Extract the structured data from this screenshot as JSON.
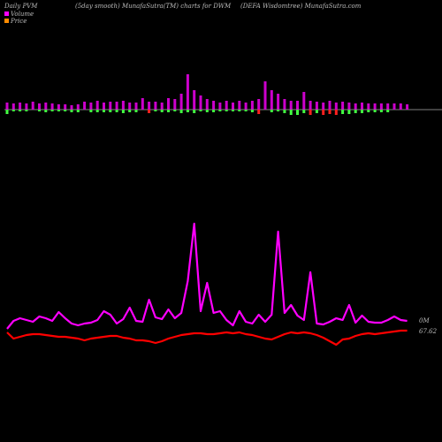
{
  "header": {
    "left": "Daily PVM",
    "mid1": "(5day smooth) MunafaSutra(TM) charts for DWM",
    "mid2": "(DEFA Wisdomtree) MunafaSutra.com"
  },
  "legend": [
    {
      "label": "Volume",
      "color": "#ff00ff"
    },
    {
      "label": "Price",
      "color": "#ff8c00"
    }
  ],
  "colors": {
    "bar_up": "#cc00cc",
    "bar_down": "#ff2020",
    "bar_down_small": "#44ff44",
    "volume_line": "#ff00ff",
    "price_line": "#ff0000",
    "baseline": "#aaaaaa"
  },
  "chart_data": {
    "type": "line",
    "ticker": "DWM",
    "value_labels": {
      "volume": "0M",
      "price": "67.62"
    },
    "bars": [
      {
        "up": 8,
        "down": 5,
        "down_color": "green"
      },
      {
        "up": 7,
        "down": 2,
        "down_color": "green"
      },
      {
        "up": 8,
        "down": 2,
        "down_color": "green"
      },
      {
        "up": 7,
        "down": 2,
        "down_color": "green"
      },
      {
        "up": 9,
        "down": 0
      },
      {
        "up": 7,
        "down": 2,
        "down_color": "green"
      },
      {
        "up": 8,
        "down": 3,
        "down_color": "green"
      },
      {
        "up": 7,
        "down": 2,
        "down_color": "green"
      },
      {
        "up": 6,
        "down": 2,
        "down_color": "green"
      },
      {
        "up": 6,
        "down": 2,
        "down_color": "green"
      },
      {
        "up": 5,
        "down": 3,
        "down_color": "green"
      },
      {
        "up": 6,
        "down": 3,
        "down_color": "green"
      },
      {
        "up": 9,
        "down": 0
      },
      {
        "up": 8,
        "down": 3,
        "down_color": "green"
      },
      {
        "up": 10,
        "down": 3,
        "down_color": "green"
      },
      {
        "up": 8,
        "down": 3,
        "down_color": "green"
      },
      {
        "up": 9,
        "down": 3,
        "down_color": "green"
      },
      {
        "up": 9,
        "down": 3,
        "down_color": "green"
      },
      {
        "up": 10,
        "down": 4,
        "down_color": "green"
      },
      {
        "up": 8,
        "down": 3,
        "down_color": "green"
      },
      {
        "up": 8,
        "down": 3,
        "down_color": "green"
      },
      {
        "up": 13,
        "down": 0
      },
      {
        "up": 9,
        "down": 4,
        "down_color": "red"
      },
      {
        "up": 9,
        "down": 2,
        "down_color": "green"
      },
      {
        "up": 8,
        "down": 3,
        "down_color": "green"
      },
      {
        "up": 13,
        "down": 3,
        "down_color": "green"
      },
      {
        "up": 12,
        "down": 2,
        "down_color": "green"
      },
      {
        "up": 18,
        "down": 4,
        "down_color": "green"
      },
      {
        "up": 40,
        "down": 3,
        "down_color": "green"
      },
      {
        "up": 22,
        "down": 4,
        "down_color": "green"
      },
      {
        "up": 16,
        "down": 2,
        "down_color": "green"
      },
      {
        "up": 12,
        "down": 3,
        "down_color": "green"
      },
      {
        "up": 10,
        "down": 3,
        "down_color": "green"
      },
      {
        "up": 8,
        "down": 2,
        "down_color": "green"
      },
      {
        "up": 10,
        "down": 2,
        "down_color": "green"
      },
      {
        "up": 8,
        "down": 2,
        "down_color": "green"
      },
      {
        "up": 10,
        "down": 2,
        "down_color": "green"
      },
      {
        "up": 8,
        "down": 2,
        "down_color": "green"
      },
      {
        "up": 10,
        "down": 3,
        "down_color": "green"
      },
      {
        "up": 12,
        "down": 5,
        "down_color": "red"
      },
      {
        "up": 32,
        "down": 0
      },
      {
        "up": 22,
        "down": 3,
        "down_color": "green"
      },
      {
        "up": 18,
        "down": 2,
        "down_color": "green"
      },
      {
        "up": 12,
        "down": 4,
        "down_color": "green"
      },
      {
        "up": 10,
        "down": 6,
        "down_color": "green"
      },
      {
        "up": 10,
        "down": 6,
        "down_color": "green"
      },
      {
        "up": 20,
        "down": 4,
        "down_color": "green"
      },
      {
        "up": 10,
        "down": 6,
        "down_color": "red"
      },
      {
        "up": 9,
        "down": 4,
        "down_color": "green"
      },
      {
        "up": 8,
        "down": 6,
        "down_color": "red"
      },
      {
        "up": 10,
        "down": 5,
        "down_color": "red"
      },
      {
        "up": 8,
        "down": 6,
        "down_color": "red"
      },
      {
        "up": 9,
        "down": 5,
        "down_color": "green"
      },
      {
        "up": 8,
        "down": 5,
        "down_color": "green"
      },
      {
        "up": 7,
        "down": 4,
        "down_color": "green"
      },
      {
        "up": 8,
        "down": 4,
        "down_color": "green"
      },
      {
        "up": 7,
        "down": 3,
        "down_color": "green"
      },
      {
        "up": 7,
        "down": 3,
        "down_color": "green"
      },
      {
        "up": 7,
        "down": 3,
        "down_color": "green"
      },
      {
        "up": 7,
        "down": 3,
        "down_color": "green"
      },
      {
        "up": 7,
        "down": 0
      },
      {
        "up": 7,
        "down": 0
      },
      {
        "up": 6,
        "down": 0
      }
    ],
    "volume_line": [
      372,
      363,
      360,
      362,
      364,
      358,
      360,
      363,
      353,
      360,
      366,
      368,
      366,
      365,
      362,
      352,
      356,
      366,
      361,
      348,
      363,
      364,
      339,
      359,
      361,
      350,
      360,
      354,
      318,
      253,
      352,
      320,
      354,
      352,
      362,
      368,
      352,
      364,
      366,
      356,
      364,
      356,
      262,
      354,
      345,
      357,
      362,
      308,
      366,
      367,
      364,
      360,
      362,
      345,
      365,
      357,
      364,
      365,
      365,
      362,
      358,
      362,
      363
    ],
    "price_line": [
      376,
      383,
      381,
      379,
      378,
      378,
      379,
      380,
      381,
      381,
      382,
      383,
      385,
      383,
      382,
      381,
      380,
      380,
      382,
      383,
      385,
      385,
      386,
      388,
      386,
      383,
      381,
      379,
      378,
      377,
      377,
      378,
      378,
      377,
      376,
      377,
      376,
      378,
      379,
      381,
      383,
      384,
      381,
      378,
      376,
      377,
      376,
      377,
      379,
      382,
      386,
      390,
      384,
      383,
      380,
      378,
      377,
      378,
      377,
      376,
      375,
      374,
      374
    ]
  }
}
